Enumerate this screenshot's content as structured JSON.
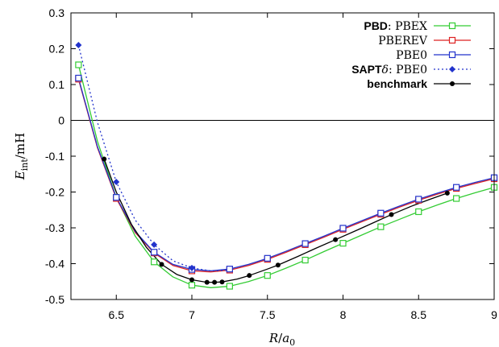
{
  "chart_data": {
    "type": "line",
    "x_axis": {
      "label_main": "R",
      "label_sub": "a",
      "label_sub_index": "0",
      "range": [
        6.2,
        9.0
      ],
      "ticks": [
        {
          "value": 6.5,
          "label": "6.5"
        },
        {
          "value": 7.0,
          "label": "7"
        },
        {
          "value": 7.5,
          "label": "7.5"
        },
        {
          "value": 8.0,
          "label": "8"
        },
        {
          "value": 8.5,
          "label": "8.5"
        },
        {
          "value": 9.0,
          "label": "9"
        }
      ]
    },
    "y_axis": {
      "label_main": "E",
      "label_sub": "int",
      "label_unit": "/mH",
      "range": [
        -0.5,
        0.3
      ],
      "ticks": [
        {
          "value": 0.3,
          "label": "0.3"
        },
        {
          "value": 0.2,
          "label": "0.2"
        },
        {
          "value": 0.1,
          "label": "0.1"
        },
        {
          "value": 0.0,
          "label": "0"
        },
        {
          "value": -0.1,
          "label": "-0.1"
        },
        {
          "value": -0.2,
          "label": "-0.2"
        },
        {
          "value": -0.3,
          "label": "-0.3"
        },
        {
          "value": -0.4,
          "label": "-0.4"
        },
        {
          "value": -0.5,
          "label": "-0.5"
        }
      ]
    },
    "zero_line": true,
    "legend_position": "top-right",
    "series": [
      {
        "key": "pbex",
        "legend_prefix": "PBD",
        "legend_text": "PBEX",
        "color": "#33cc33",
        "marker": "open-square",
        "line": "solid",
        "points": [
          [
            6.25,
            0.155
          ],
          [
            6.5,
            -0.215
          ],
          [
            6.75,
            -0.395
          ],
          [
            7.0,
            -0.46
          ],
          [
            7.25,
            -0.463
          ],
          [
            7.5,
            -0.433
          ],
          [
            7.75,
            -0.39
          ],
          [
            8.0,
            -0.343
          ],
          [
            8.25,
            -0.297
          ],
          [
            8.5,
            -0.255
          ],
          [
            8.75,
            -0.218
          ],
          [
            9.0,
            -0.187
          ]
        ],
        "curve": [
          [
            6.25,
            0.155
          ],
          [
            6.375,
            -0.058
          ],
          [
            6.5,
            -0.215
          ],
          [
            6.625,
            -0.323
          ],
          [
            6.75,
            -0.395
          ],
          [
            6.875,
            -0.437
          ],
          [
            7.0,
            -0.46
          ],
          [
            7.125,
            -0.467
          ],
          [
            7.25,
            -0.463
          ],
          [
            7.375,
            -0.45
          ],
          [
            7.5,
            -0.433
          ],
          [
            7.625,
            -0.412
          ],
          [
            7.75,
            -0.39
          ],
          [
            7.875,
            -0.366
          ],
          [
            8.0,
            -0.343
          ],
          [
            8.125,
            -0.32
          ],
          [
            8.25,
            -0.297
          ],
          [
            8.375,
            -0.276
          ],
          [
            8.5,
            -0.255
          ],
          [
            8.625,
            -0.236
          ],
          [
            8.75,
            -0.218
          ],
          [
            8.875,
            -0.202
          ],
          [
            9.0,
            -0.187
          ]
        ]
      },
      {
        "key": "pberev",
        "legend_prefix": "",
        "legend_text": "PBEREV",
        "color": "#dd2222",
        "marker": "open-square",
        "line": "solid",
        "points": [
          [
            6.25,
            0.115
          ],
          [
            6.5,
            -0.218
          ],
          [
            6.75,
            -0.37
          ],
          [
            7.0,
            -0.42
          ],
          [
            7.25,
            -0.418
          ],
          [
            7.5,
            -0.388
          ],
          [
            7.75,
            -0.347
          ],
          [
            8.0,
            -0.304
          ],
          [
            8.25,
            -0.262
          ],
          [
            8.5,
            -0.223
          ],
          [
            8.75,
            -0.19
          ],
          [
            9.0,
            -0.163
          ]
        ],
        "curve": [
          [
            6.25,
            0.115
          ],
          [
            6.375,
            -0.076
          ],
          [
            6.5,
            -0.218
          ],
          [
            6.625,
            -0.313
          ],
          [
            6.75,
            -0.37
          ],
          [
            6.875,
            -0.405
          ],
          [
            7.0,
            -0.42
          ],
          [
            7.125,
            -0.423
          ],
          [
            7.25,
            -0.418
          ],
          [
            7.375,
            -0.405
          ],
          [
            7.5,
            -0.388
          ],
          [
            7.625,
            -0.368
          ],
          [
            7.75,
            -0.347
          ],
          [
            7.875,
            -0.326
          ],
          [
            8.0,
            -0.304
          ],
          [
            8.125,
            -0.283
          ],
          [
            8.25,
            -0.262
          ],
          [
            8.375,
            -0.242
          ],
          [
            8.5,
            -0.223
          ],
          [
            8.625,
            -0.206
          ],
          [
            8.75,
            -0.19
          ],
          [
            8.875,
            -0.176
          ],
          [
            9.0,
            -0.163
          ]
        ]
      },
      {
        "key": "pbe0",
        "legend_prefix": "",
        "legend_text": "PBE0",
        "color": "#2233cc",
        "marker": "open-square",
        "line": "solid",
        "points": [
          [
            6.25,
            0.118
          ],
          [
            6.5,
            -0.215
          ],
          [
            6.75,
            -0.368
          ],
          [
            7.0,
            -0.416
          ],
          [
            7.25,
            -0.415
          ],
          [
            7.5,
            -0.385
          ],
          [
            7.75,
            -0.344
          ],
          [
            8.0,
            -0.301
          ],
          [
            8.25,
            -0.259
          ],
          [
            8.5,
            -0.22
          ],
          [
            8.75,
            -0.187
          ],
          [
            9.0,
            -0.16
          ]
        ],
        "curve": [
          [
            6.25,
            0.118
          ],
          [
            6.375,
            -0.073
          ],
          [
            6.5,
            -0.215
          ],
          [
            6.625,
            -0.31
          ],
          [
            6.75,
            -0.368
          ],
          [
            6.875,
            -0.402
          ],
          [
            7.0,
            -0.416
          ],
          [
            7.125,
            -0.42
          ],
          [
            7.25,
            -0.415
          ],
          [
            7.375,
            -0.402
          ],
          [
            7.5,
            -0.385
          ],
          [
            7.625,
            -0.365
          ],
          [
            7.75,
            -0.344
          ],
          [
            7.875,
            -0.323
          ],
          [
            8.0,
            -0.301
          ],
          [
            8.125,
            -0.28
          ],
          [
            8.25,
            -0.259
          ],
          [
            8.375,
            -0.239
          ],
          [
            8.5,
            -0.22
          ],
          [
            8.625,
            -0.203
          ],
          [
            8.75,
            -0.187
          ],
          [
            8.875,
            -0.173
          ],
          [
            9.0,
            -0.16
          ]
        ]
      },
      {
        "key": "sapt",
        "legend_prefix": "SAPT",
        "legend_delta": "δ",
        "legend_text": "PBE0",
        "color": "#2233cc",
        "marker": "filled-diamond",
        "line": "dotted",
        "points": [
          [
            6.25,
            0.21
          ],
          [
            6.5,
            -0.172
          ],
          [
            6.75,
            -0.347
          ],
          [
            7.0,
            -0.412
          ]
        ],
        "curve": [
          [
            6.25,
            0.21
          ],
          [
            6.375,
            -0.005
          ],
          [
            6.5,
            -0.172
          ],
          [
            6.625,
            -0.278
          ],
          [
            6.75,
            -0.347
          ],
          [
            6.875,
            -0.392
          ],
          [
            7.0,
            -0.412
          ],
          [
            7.125,
            -0.42
          ],
          [
            7.25,
            -0.418
          ]
        ]
      },
      {
        "key": "benchmark",
        "legend_prefix": "benchmark",
        "legend_text": "",
        "color": "#000000",
        "marker": "filled-circle",
        "line": "solid",
        "points": [
          [
            6.42,
            -0.108
          ],
          [
            6.8,
            -0.402
          ],
          [
            7.0,
            -0.445
          ],
          [
            7.1,
            -0.452
          ],
          [
            7.15,
            -0.452
          ],
          [
            7.2,
            -0.451
          ],
          [
            7.38,
            -0.433
          ],
          [
            7.57,
            -0.404
          ],
          [
            7.95,
            -0.333
          ],
          [
            8.32,
            -0.263
          ],
          [
            8.69,
            -0.203
          ]
        ],
        "curve": [
          [
            6.42,
            -0.108
          ],
          [
            6.5,
            -0.2
          ],
          [
            6.6,
            -0.29
          ],
          [
            6.7,
            -0.355
          ],
          [
            6.8,
            -0.402
          ],
          [
            6.9,
            -0.43
          ],
          [
            7.0,
            -0.445
          ],
          [
            7.1,
            -0.452
          ],
          [
            7.15,
            -0.452
          ],
          [
            7.2,
            -0.451
          ],
          [
            7.3,
            -0.443
          ],
          [
            7.38,
            -0.433
          ],
          [
            7.5,
            -0.415
          ],
          [
            7.57,
            -0.404
          ],
          [
            7.7,
            -0.38
          ],
          [
            7.82,
            -0.357
          ],
          [
            7.95,
            -0.333
          ],
          [
            8.1,
            -0.305
          ],
          [
            8.2,
            -0.286
          ],
          [
            8.32,
            -0.263
          ],
          [
            8.45,
            -0.24
          ],
          [
            8.57,
            -0.221
          ],
          [
            8.69,
            -0.203
          ]
        ]
      }
    ]
  }
}
